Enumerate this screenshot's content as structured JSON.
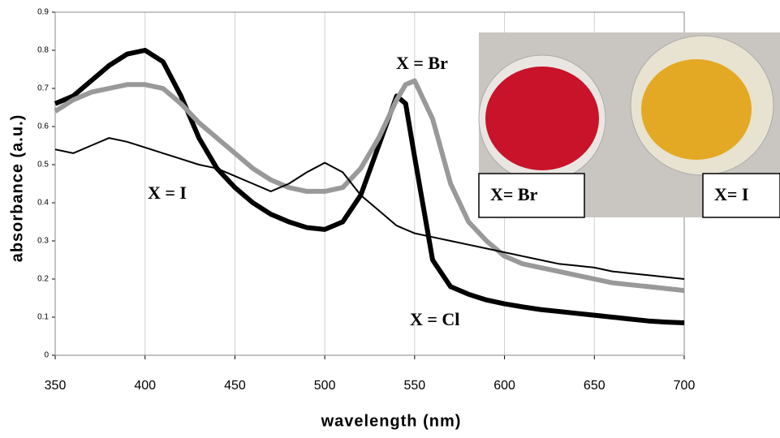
{
  "chart_data": {
    "type": "line",
    "x_label": "wavelength (nm)",
    "y_label": "absorbance (a.u.)",
    "x": [
      350,
      360,
      370,
      380,
      390,
      400,
      410,
      420,
      430,
      440,
      450,
      460,
      470,
      480,
      490,
      500,
      510,
      520,
      530,
      540,
      545,
      550,
      560,
      570,
      580,
      590,
      600,
      610,
      620,
      630,
      640,
      650,
      660,
      670,
      680,
      690,
      700
    ],
    "series": [
      {
        "name": "X = Cl",
        "color": "#000000",
        "width": 6,
        "values": [
          0.66,
          0.68,
          0.72,
          0.76,
          0.79,
          0.8,
          0.77,
          0.68,
          0.57,
          0.49,
          0.44,
          0.4,
          0.37,
          0.35,
          0.335,
          0.33,
          0.35,
          0.42,
          0.55,
          0.68,
          0.66,
          0.52,
          0.25,
          0.18,
          0.16,
          0.145,
          0.135,
          0.127,
          0.12,
          0.115,
          0.11,
          0.105,
          0.1,
          0.095,
          0.09,
          0.087,
          0.085
        ]
      },
      {
        "name": "X = Br",
        "color": "#999999",
        "width": 6,
        "values": [
          0.64,
          0.67,
          0.69,
          0.7,
          0.71,
          0.71,
          0.7,
          0.66,
          0.61,
          0.57,
          0.53,
          0.49,
          0.46,
          0.44,
          0.43,
          0.43,
          0.44,
          0.49,
          0.57,
          0.67,
          0.71,
          0.72,
          0.62,
          0.45,
          0.35,
          0.3,
          0.26,
          0.24,
          0.23,
          0.22,
          0.21,
          0.2,
          0.19,
          0.185,
          0.18,
          0.175,
          0.17
        ]
      },
      {
        "name": "X = I",
        "color": "#000000",
        "width": 2,
        "values": [
          0.54,
          0.53,
          0.55,
          0.57,
          0.56,
          0.545,
          0.53,
          0.515,
          0.5,
          0.49,
          0.47,
          0.45,
          0.43,
          0.45,
          0.48,
          0.505,
          0.48,
          0.42,
          0.38,
          0.34,
          0.33,
          0.32,
          0.31,
          0.3,
          0.29,
          0.28,
          0.27,
          0.26,
          0.25,
          0.24,
          0.235,
          0.23,
          0.22,
          0.215,
          0.21,
          0.205,
          0.2
        ]
      }
    ],
    "xlim": [
      350,
      700
    ],
    "xticks": [
      350,
      400,
      450,
      500,
      550,
      600,
      650,
      700
    ],
    "ylim": [
      0,
      0.9
    ],
    "yticks": [
      0,
      0.1,
      0.2,
      0.3,
      0.4,
      0.5,
      0.6,
      0.7,
      0.8,
      0.9
    ],
    "grid": true,
    "inset_labels": [
      "X= Br",
      "X= I"
    ]
  }
}
